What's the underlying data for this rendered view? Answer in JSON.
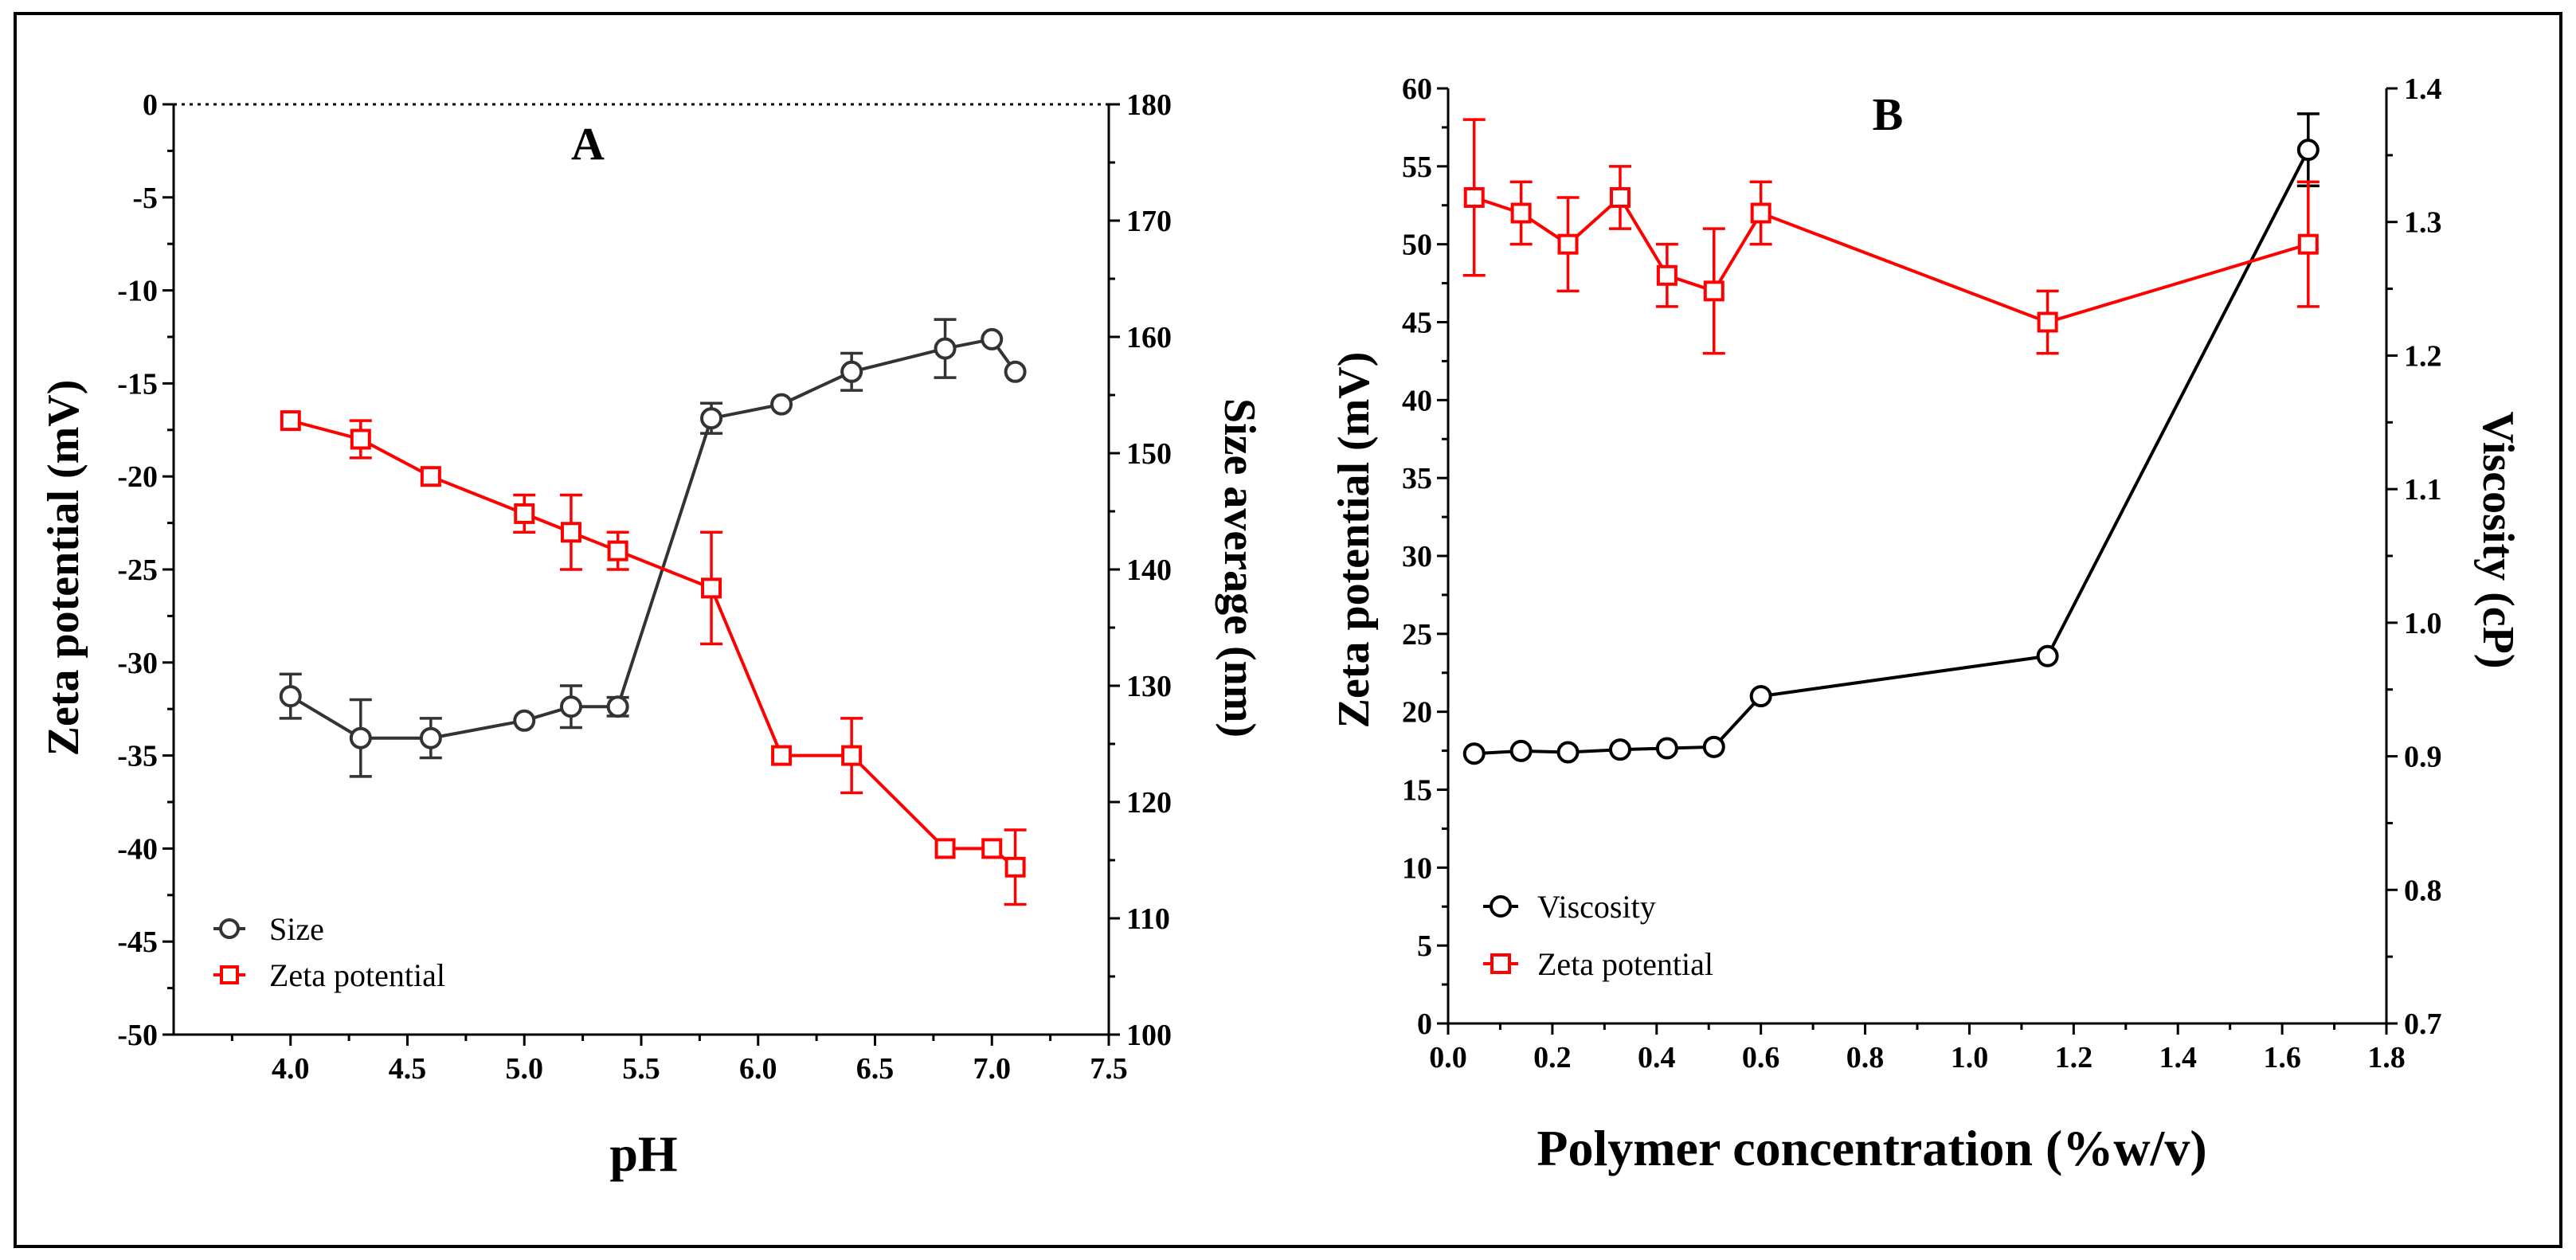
{
  "chart_data": [
    {
      "type": "line",
      "panel": "A",
      "xlabel": "pH",
      "ylabel": "Zeta potential (mV)",
      "y2label": "Size average (nm)",
      "xlim": [
        3.5,
        7.5
      ],
      "ylim": [
        -50,
        0
      ],
      "y2lim": [
        100,
        180
      ],
      "xticks": [
        4.0,
        4.5,
        5.0,
        5.5,
        6.0,
        6.5,
        7.0,
        7.5
      ],
      "xtick_labels": [
        "4.0",
        "4.5",
        "5.0",
        "5.5",
        "6.0",
        "6.5",
        "7.0",
        "7.5"
      ],
      "yticks": [
        0,
        -5,
        -10,
        -15,
        -20,
        -25,
        -30,
        -35,
        -40,
        -45,
        -50
      ],
      "ytick_labels": [
        "0",
        "-5",
        "-10",
        "-15",
        "-20",
        "-25",
        "-30",
        "-35",
        "-40",
        "-45",
        "-50"
      ],
      "y2ticks": [
        180,
        170,
        160,
        150,
        140,
        130,
        120,
        110,
        100
      ],
      "y2tick_labels": [
        "180",
        "170",
        "160",
        "150",
        "140",
        "130",
        "120",
        "110",
        "100"
      ],
      "zero_line": "dotted",
      "legend_position": "bottom-left",
      "series": [
        {
          "name": "Size",
          "axis": "right",
          "marker": "circle",
          "color": "#333333",
          "x": [
            4.0,
            4.3,
            4.6,
            5.0,
            5.2,
            5.4,
            5.8,
            6.1,
            6.4,
            6.8,
            7.0,
            7.1
          ],
          "y": [
            129.1,
            125.5,
            125.5,
            127.0,
            128.2,
            128.2,
            153.0,
            154.2,
            157.0,
            159.0,
            159.8,
            157.0
          ],
          "err": [
            1.9,
            3.3,
            1.7,
            0,
            1.8,
            0.8,
            1.3,
            0,
            1.6,
            2.5,
            0,
            0
          ]
        },
        {
          "name": "Zeta potential",
          "axis": "left",
          "marker": "square",
          "color": "#ff0000",
          "x": [
            4.0,
            4.3,
            4.6,
            5.0,
            5.2,
            5.4,
            5.8,
            6.1,
            6.4,
            6.8,
            7.0,
            7.1
          ],
          "y": [
            -17,
            -18,
            -20,
            -22,
            -23,
            -24,
            -26,
            -35,
            -35,
            -40,
            -40,
            -41
          ],
          "err": [
            0,
            1,
            0,
            1,
            2,
            1,
            3,
            0,
            2,
            0,
            0,
            2
          ]
        }
      ]
    },
    {
      "type": "line",
      "panel": "B",
      "xlabel": "Polymer concentration (%w/v)",
      "ylabel": "Zeta potential (mV)",
      "y2label": "Viscosity (cP)",
      "xlim": [
        0,
        1.8
      ],
      "ylim": [
        0,
        60
      ],
      "y2lim": [
        0.7,
        1.4
      ],
      "xticks": [
        0.0,
        0.2,
        0.4,
        0.6,
        0.8,
        1.0,
        1.2,
        1.4,
        1.6,
        1.8
      ],
      "xtick_labels": [
        "0.0",
        "0.2",
        "0.4",
        "0.6",
        "0.8",
        "1.0",
        "1.2",
        "1.4",
        "1.6",
        "1.8"
      ],
      "yticks": [
        0,
        5,
        10,
        15,
        20,
        25,
        30,
        35,
        40,
        45,
        50,
        55,
        60
      ],
      "ytick_labels": [
        "0",
        "5",
        "10",
        "15",
        "20",
        "25",
        "30",
        "35",
        "40",
        "45",
        "50",
        "55",
        "60"
      ],
      "y2ticks": [
        0.7,
        0.8,
        0.9,
        1.0,
        1.1,
        1.2,
        1.3,
        1.4
      ],
      "y2tick_labels": [
        "0.7",
        "0.8",
        "0.9",
        "1.0",
        "1.1",
        "1.2",
        "1.3",
        "1.4"
      ],
      "legend_position": "bottom-left",
      "series": [
        {
          "name": "Viscosity",
          "axis": "right",
          "marker": "circle",
          "color": "#000000",
          "x": [
            0.05,
            0.14,
            0.23,
            0.33,
            0.42,
            0.51,
            0.6,
            1.15,
            1.65
          ],
          "y": [
            0.902,
            0.904,
            0.903,
            0.905,
            0.906,
            0.907,
            0.945,
            0.975,
            1.354
          ],
          "err": [
            0,
            0,
            0,
            0,
            0,
            0,
            0,
            0,
            0.027
          ]
        },
        {
          "name": "Zeta potential",
          "axis": "left",
          "marker": "square",
          "color": "#ff0000",
          "x": [
            0.05,
            0.14,
            0.23,
            0.33,
            0.42,
            0.51,
            0.6,
            1.15,
            1.65
          ],
          "y": [
            53,
            52,
            50,
            53,
            48,
            47,
            52,
            45,
            50
          ],
          "err": [
            5,
            2,
            3,
            2,
            2,
            4,
            2,
            2,
            4
          ]
        }
      ]
    }
  ]
}
